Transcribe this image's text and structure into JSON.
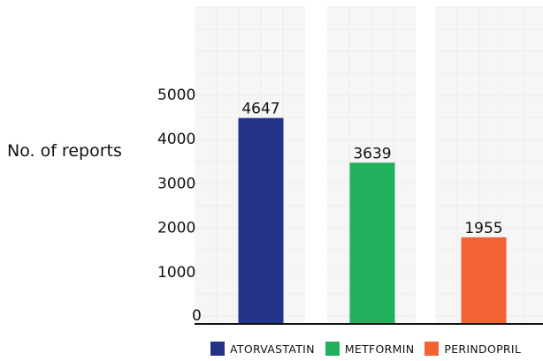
{
  "chart_data": {
    "type": "bar",
    "categories": [
      "ATORVASTATIN",
      "METFORMIN",
      "PERINDOPRIL"
    ],
    "values": [
      4647,
      3639,
      1955
    ],
    "colors": [
      "#233488",
      "#20b05e",
      "#f26232"
    ],
    "ylabel": "No. of reports",
    "yticks": [
      0,
      1000,
      2000,
      3000,
      4000,
      5000
    ],
    "ylim": [
      0,
      5000
    ],
    "grid": true,
    "legend_position": "bottom"
  }
}
